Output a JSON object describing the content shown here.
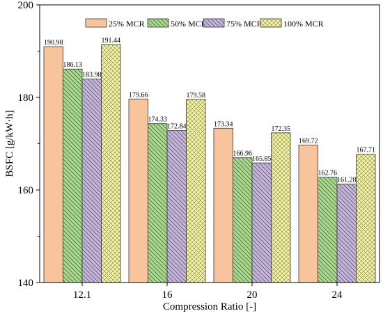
{
  "chart_data": {
    "type": "bar",
    "categories": [
      "12.1",
      "16",
      "20",
      "24"
    ],
    "series": [
      {
        "name": "25% MCR",
        "values": [
          190.98,
          179.66,
          173.34,
          169.72
        ],
        "color": "#F8C49C",
        "pattern": "none"
      },
      {
        "name": "50% MCR",
        "values": [
          186.13,
          174.33,
          166.96,
          162.76
        ],
        "color": "#A6D98A",
        "pattern": "diag-down"
      },
      {
        "name": "75% MCR",
        "values": [
          183.98,
          172.84,
          165.85,
          161.28
        ],
        "color": "#C4B4DC",
        "pattern": "diag-down"
      },
      {
        "name": "100% MCR",
        "values": [
          191.44,
          179.58,
          172.35,
          167.71
        ],
        "color": "#F2F29A",
        "pattern": "cross"
      }
    ],
    "value_labels": [
      [
        "190.98",
        "179.66",
        "173.34",
        "169.72"
      ],
      [
        "186.13",
        "174.33",
        "166.96",
        "162.76"
      ],
      [
        "183.98",
        "172.84",
        "165.85",
        "161.28"
      ],
      [
        "191.44",
        "179.58",
        "172.35",
        "167.71"
      ]
    ],
    "xlabel": "Compression Ratio [-]",
    "ylabel": "BSFC [g/kW·h]",
    "ylim": [
      140,
      200
    ],
    "yticks": [
      140,
      160,
      180,
      200
    ],
    "ytick_labels": [
      "140",
      "160",
      "180",
      "200"
    ],
    "grid": false,
    "legend_position": "top"
  }
}
